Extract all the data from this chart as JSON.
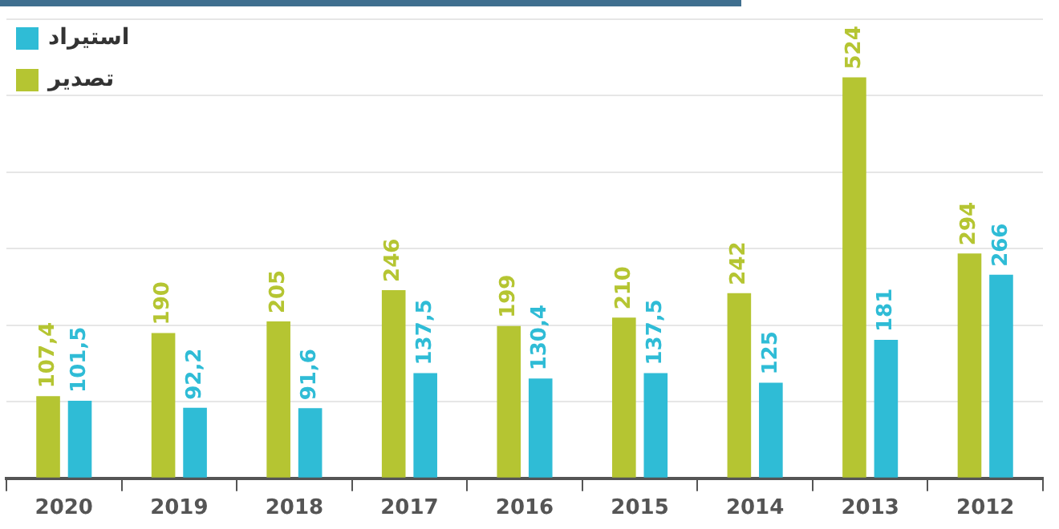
{
  "chart_data": {
    "type": "bar",
    "categories": [
      "2020",
      "2019",
      "2018",
      "2017",
      "2016",
      "2015",
      "2014",
      "2013",
      "2012"
    ],
    "series": [
      {
        "name": "تصدير",
        "color": "#b5c532",
        "values": [
          107.4,
          190,
          205,
          246,
          199,
          210,
          242,
          524,
          294
        ],
        "value_labels": [
          "107,4",
          "190",
          "205",
          "246",
          "199",
          "210",
          "242",
          "524",
          "294"
        ]
      },
      {
        "name": "استيراد",
        "color": "#2fbcd6",
        "values": [
          101.5,
          92.2,
          91.6,
          137.5,
          130.4,
          137.5,
          125,
          181,
          266
        ],
        "value_labels": [
          "101,5",
          "92,2",
          "91,6",
          "137,5",
          "130,4",
          "137,5",
          "125",
          "181",
          "266"
        ]
      }
    ],
    "grid": "y",
    "legend": "top left",
    "tick_labels": "x"
  }
}
